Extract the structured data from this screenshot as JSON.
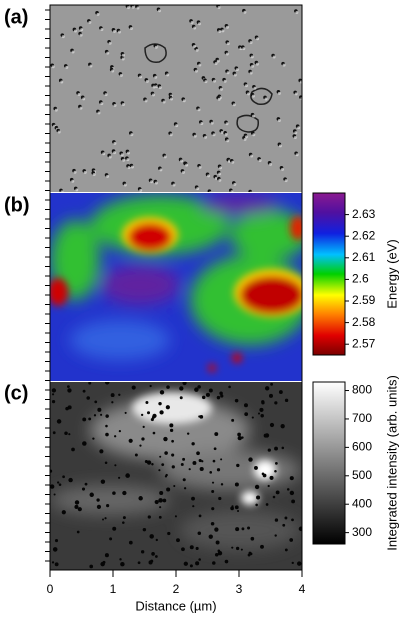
{
  "chart_data": {
    "type": "image-panels",
    "panel_labels": [
      "(a)",
      "(b)",
      "(c)"
    ],
    "xlabel": "Distance (µm)",
    "xlim": [
      0,
      4
    ],
    "xticks": [
      0,
      1,
      2,
      3,
      4
    ],
    "colorbars": [
      {
        "label": "Energy (eV)",
        "ylim": [
          2.565,
          2.64
        ],
        "yticks": [
          2.57,
          2.58,
          2.59,
          2.6,
          2.61,
          2.62,
          2.63
        ]
      },
      {
        "label": "Integrated intensity (arb. units)",
        "ylim": [
          260,
          830
        ],
        "yticks": [
          300,
          400,
          500,
          600,
          700,
          800
        ]
      }
    ]
  }
}
